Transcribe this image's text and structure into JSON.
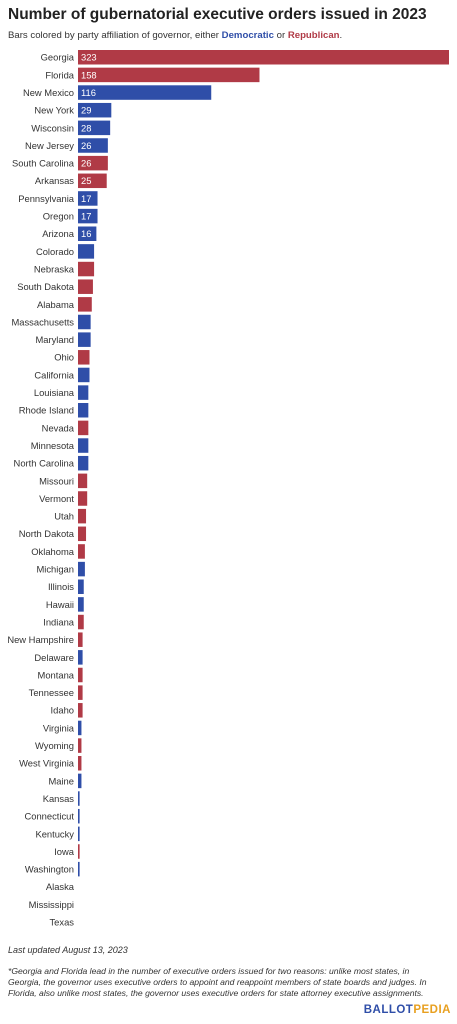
{
  "header": {
    "title": "Number of gubernatorial executive orders issued in 2023",
    "subtitle_prefix": "Bars colored by party affiliation of governor, either ",
    "subtitle_dem": "Democratic",
    "subtitle_mid": " or ",
    "subtitle_rep": "Republican",
    "subtitle_suffix": "."
  },
  "footer": {
    "updated": "Last updated August 13, 2023",
    "note": "*Georgia and Florida lead in the number of executive orders issued for two reasons: unlike most states, in Georgia, the governor uses executive orders to appoint and reappoint members of state boards and judges. In Florida, also unlike most states, the governor uses executive orders for state attorney executive assignments.",
    "logo_part1": "BALLOT",
    "logo_part2": "PEDIA"
  },
  "colors": {
    "democratic": "#2f4ea8",
    "republican": "#b03a46"
  },
  "chart_data": {
    "type": "bar",
    "orientation": "horizontal",
    "title": "Number of gubernatorial executive orders issued in 2023",
    "xlim": [
      0,
      323
    ],
    "categories": [
      "Georgia",
      "Florida",
      "New Mexico",
      "New York",
      "Wisconsin",
      "New Jersey",
      "South Carolina",
      "Arkansas",
      "Pennsylvania",
      "Oregon",
      "Arizona",
      "Colorado",
      "Nebraska",
      "South Dakota",
      "Alabama",
      "Massachusetts",
      "Maryland",
      "Ohio",
      "California",
      "Louisiana",
      "Rhode Island",
      "Nevada",
      "Minnesota",
      "North Carolina",
      "Missouri",
      "Vermont",
      "Utah",
      "North Dakota",
      "Oklahoma",
      "Michigan",
      "Illinois",
      "Hawaii",
      "Indiana",
      "New Hampshire",
      "Delaware",
      "Montana",
      "Tennessee",
      "Idaho",
      "Virginia",
      "Wyoming",
      "West Virginia",
      "Maine",
      "Kansas",
      "Connecticut",
      "Kentucky",
      "Iowa",
      "Washington",
      "Alaska",
      "Mississippi",
      "Texas"
    ],
    "values": [
      323,
      158,
      116,
      29,
      28,
      26,
      26,
      25,
      17,
      17,
      16,
      14,
      14,
      13,
      12,
      11,
      11,
      10,
      10,
      9,
      9,
      9,
      9,
      9,
      8,
      8,
      7,
      7,
      6,
      6,
      5,
      5,
      5,
      4,
      4,
      4,
      4,
      4,
      3,
      3,
      3,
      3,
      1,
      1,
      1,
      1,
      1,
      0,
      0,
      0
    ],
    "party": [
      "R",
      "R",
      "D",
      "D",
      "D",
      "D",
      "R",
      "R",
      "D",
      "D",
      "D",
      "D",
      "R",
      "R",
      "R",
      "D",
      "D",
      "R",
      "D",
      "D",
      "D",
      "R",
      "D",
      "D",
      "R",
      "R",
      "R",
      "R",
      "R",
      "D",
      "D",
      "D",
      "R",
      "R",
      "D",
      "R",
      "R",
      "R",
      "D",
      "R",
      "R",
      "D",
      "D",
      "D",
      "D",
      "R",
      "D",
      "R",
      "R",
      "R"
    ],
    "value_labels": [
      "323",
      "158",
      "116",
      "29",
      "28",
      "26",
      "26",
      "25",
      "17",
      "17",
      "16",
      "",
      "",
      "",
      "",
      "",
      "",
      "",
      "",
      "",
      "",
      "",
      "",
      "",
      "",
      "",
      "",
      "",
      "",
      "",
      "",
      "",
      "",
      "",
      "",
      "",
      "",
      "",
      "",
      "",
      "",
      "",
      "",
      "",
      "",
      "",
      "",
      "",
      "",
      ""
    ]
  }
}
